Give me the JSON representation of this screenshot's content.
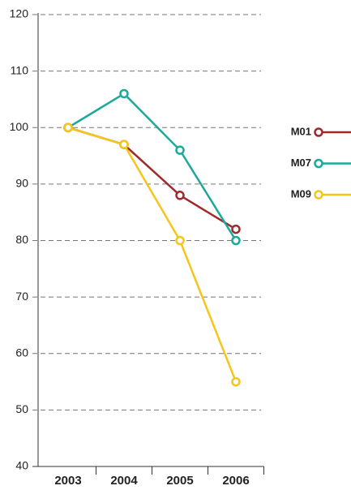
{
  "chart_data": {
    "type": "line",
    "categories": [
      "2003",
      "2004",
      "2005",
      "2006"
    ],
    "series": [
      {
        "name": "M01",
        "color": "#9e2a2b",
        "values": [
          100,
          97,
          88,
          82
        ]
      },
      {
        "name": "M07",
        "color": "#1aa99b",
        "values": [
          100,
          106,
          96,
          80
        ]
      },
      {
        "name": "M09",
        "color": "#f5c518",
        "values": [
          100,
          97,
          80,
          55
        ]
      }
    ],
    "ylim": [
      40,
      120
    ],
    "yticks": [
      40,
      50,
      60,
      70,
      80,
      90,
      100,
      110,
      120
    ],
    "grid": true,
    "legend": "right"
  }
}
